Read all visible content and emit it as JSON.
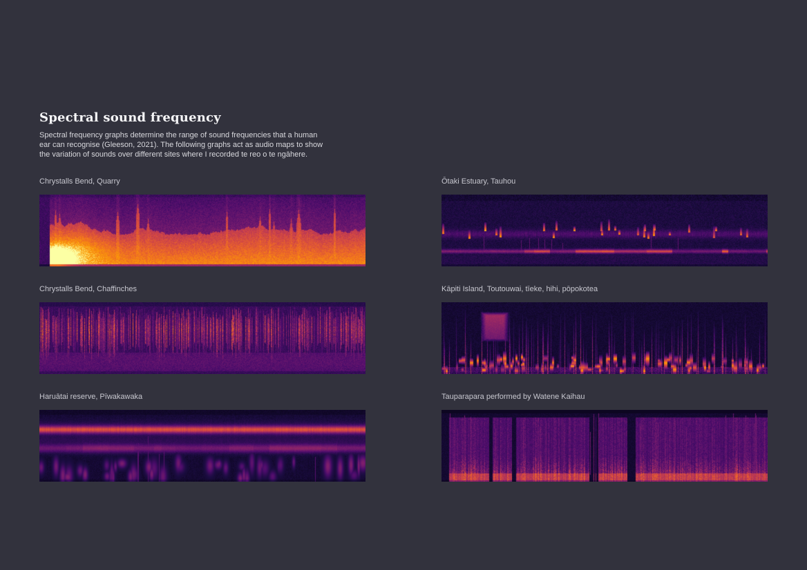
{
  "page": {
    "background": "#32323d"
  },
  "header": {
    "title": "Spectral sound frequency",
    "description_lines": [
      "Spectral frequency graphs determine the range of sound frequencies that a human",
      "ear can recognise (Gleeson, 2021). The following graphs act as audio maps to show",
      "the variation of sounds over different sites where I recorded te reo o te ngāhere."
    ]
  },
  "spectrograms": [
    {
      "label": "Chrystalls Bend, Quarry",
      "pattern": "quarry"
    },
    {
      "label": "Ōtaki Estuary, Tauhou",
      "pattern": "estuary"
    },
    {
      "label": "Chrystalls Bend, Chaffinches",
      "pattern": "chaffinches"
    },
    {
      "label": "Kāpiti Island, Toutouwai, tīeke, hihi, pōpokotea",
      "pattern": "kapiti"
    },
    {
      "label": "Haruātai reserve, Pīwakawaka",
      "pattern": "haruatai"
    },
    {
      "label": "Tauparapara performed by Watene Kaihau",
      "pattern": "tauparapara"
    }
  ],
  "palette": {
    "name": "inferno",
    "stops": [
      [
        0.0,
        0,
        0,
        4
      ],
      [
        0.125,
        27,
        12,
        65
      ],
      [
        0.25,
        75,
        12,
        107
      ],
      [
        0.375,
        120,
        28,
        109
      ],
      [
        0.5,
        165,
        44,
        96
      ],
      [
        0.625,
        207,
        68,
        70
      ],
      [
        0.75,
        237,
        105,
        37
      ],
      [
        0.875,
        251,
        155,
        6
      ],
      [
        1.0,
        252,
        255,
        164
      ]
    ]
  }
}
